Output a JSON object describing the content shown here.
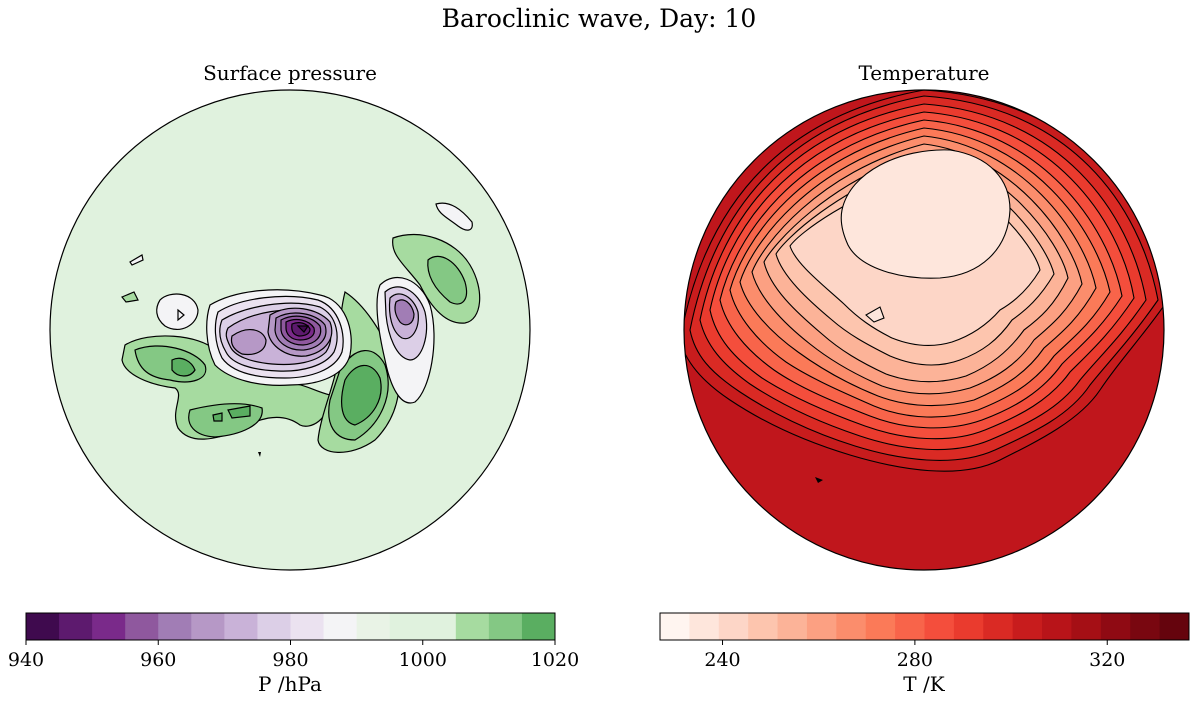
{
  "title": "Baroclinic wave, Day: 10",
  "chart_data": [
    {
      "type": "contour-map",
      "title": "Surface pressure",
      "colorbar": {
        "label": "P /hPa",
        "range": [
          940,
          1020
        ],
        "ticks": [
          940,
          960,
          980,
          1000,
          1020
        ],
        "levels": [
          940,
          945,
          950,
          955,
          960,
          965,
          970,
          975,
          980,
          985,
          990,
          995,
          1000,
          1005,
          1010,
          1015,
          1020
        ],
        "colors": [
          "#3f0a4e",
          "#5d1a6e",
          "#7a2a8a",
          "#8f589e",
          "#a17db5",
          "#b698c6",
          "#c9b2d8",
          "#dccfe7",
          "#ebe2f0",
          "#f4f4f6",
          "#e9f3e6",
          "#e0f2de",
          "#e0f2de",
          "#a6dba0",
          "#84c884",
          "#5aae61"
        ]
      },
      "background_value_color": "#e0f2de"
    },
    {
      "type": "contour-map",
      "title": "Temperature",
      "colorbar": {
        "label": "T /K",
        "range": [
          227,
          337
        ],
        "ticks": [
          240,
          280,
          320
        ],
        "levels_count": 20,
        "colors": [
          "#fff5f0",
          "#fee6dc",
          "#fdd6c7",
          "#fdc5ae",
          "#fcb398",
          "#fca082",
          "#fb8d6c",
          "#fb7a58",
          "#f8644a",
          "#f44e3c",
          "#ea3b2e",
          "#da2a24",
          "#c81c1d",
          "#b81419",
          "#a50f15",
          "#8f0a13",
          "#790710",
          "#65040d"
        ]
      },
      "background_value_color": "#c0161c"
    }
  ]
}
